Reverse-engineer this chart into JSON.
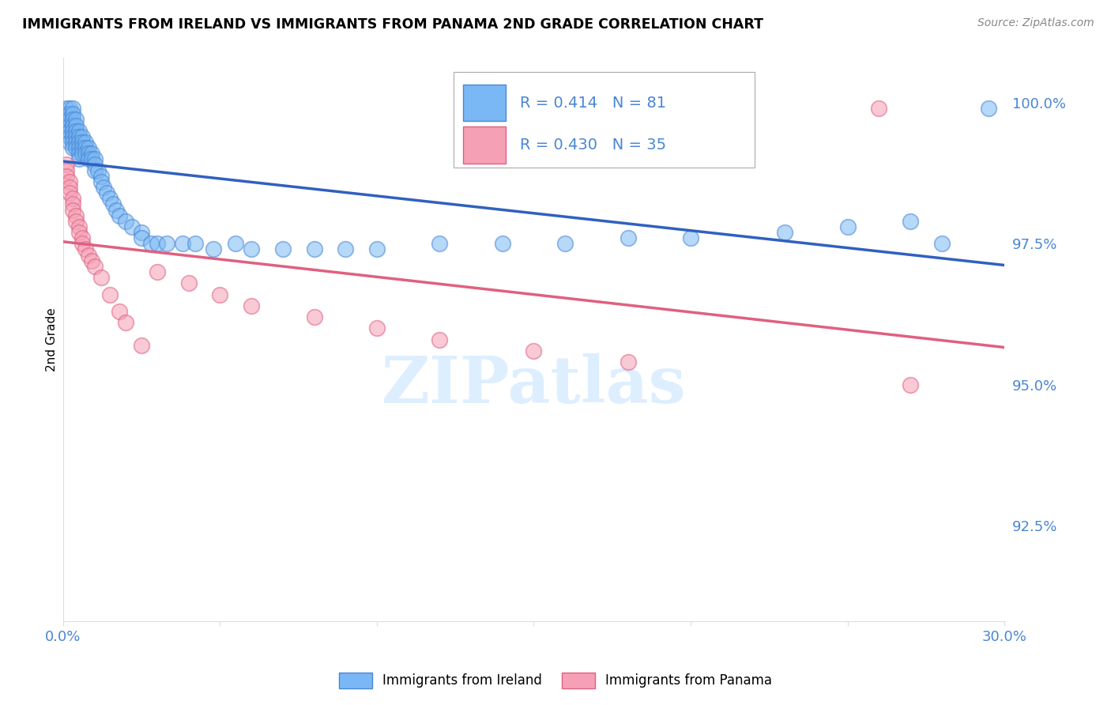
{
  "title": "IMMIGRANTS FROM IRELAND VS IMMIGRANTS FROM PANAMA 2ND GRADE CORRELATION CHART",
  "source": "Source: ZipAtlas.com",
  "ylabel": "2nd Grade",
  "ylabel_right_values": [
    1.0,
    0.975,
    0.95,
    0.925
  ],
  "xmin": 0.0,
  "xmax": 0.3,
  "ymin": 0.908,
  "ymax": 1.008,
  "legend_R_ireland": "0.414",
  "legend_N_ireland": "81",
  "legend_R_panama": "0.430",
  "legend_N_panama": "35",
  "ireland_color": "#7ab8f5",
  "panama_color": "#f5a0b5",
  "ireland_edge_color": "#4a86d4",
  "panama_edge_color": "#e06080",
  "ireland_line_color": "#3060c0",
  "panama_line_color": "#e06080",
  "watermark_color": "#ddeeff",
  "grid_color": "#dddddd",
  "axis_label_color": "#4a86d4",
  "ireland_x": [
    0.001,
    0.001,
    0.001,
    0.001,
    0.002,
    0.002,
    0.002,
    0.002,
    0.002,
    0.002,
    0.002,
    0.003,
    0.003,
    0.003,
    0.003,
    0.003,
    0.003,
    0.003,
    0.003,
    0.004,
    0.004,
    0.004,
    0.004,
    0.004,
    0.004,
    0.005,
    0.005,
    0.005,
    0.005,
    0.005,
    0.005,
    0.006,
    0.006,
    0.006,
    0.006,
    0.007,
    0.007,
    0.007,
    0.008,
    0.008,
    0.008,
    0.009,
    0.009,
    0.01,
    0.01,
    0.01,
    0.011,
    0.012,
    0.012,
    0.013,
    0.014,
    0.015,
    0.016,
    0.017,
    0.018,
    0.02,
    0.022,
    0.025,
    0.025,
    0.028,
    0.03,
    0.033,
    0.038,
    0.042,
    0.048,
    0.055,
    0.06,
    0.07,
    0.08,
    0.09,
    0.1,
    0.12,
    0.14,
    0.16,
    0.18,
    0.2,
    0.23,
    0.25,
    0.27,
    0.28,
    0.295
  ],
  "ireland_y": [
    0.999,
    0.998,
    0.997,
    0.996,
    0.999,
    0.998,
    0.997,
    0.996,
    0.995,
    0.994,
    0.993,
    0.999,
    0.998,
    0.997,
    0.996,
    0.995,
    0.994,
    0.993,
    0.992,
    0.997,
    0.996,
    0.995,
    0.994,
    0.993,
    0.992,
    0.995,
    0.994,
    0.993,
    0.992,
    0.991,
    0.99,
    0.994,
    0.993,
    0.992,
    0.991,
    0.993,
    0.992,
    0.991,
    0.992,
    0.991,
    0.99,
    0.991,
    0.99,
    0.99,
    0.989,
    0.988,
    0.988,
    0.987,
    0.986,
    0.985,
    0.984,
    0.983,
    0.982,
    0.981,
    0.98,
    0.979,
    0.978,
    0.977,
    0.976,
    0.975,
    0.975,
    0.975,
    0.975,
    0.975,
    0.974,
    0.975,
    0.974,
    0.974,
    0.974,
    0.974,
    0.974,
    0.975,
    0.975,
    0.975,
    0.976,
    0.976,
    0.977,
    0.978,
    0.979,
    0.975,
    0.999
  ],
  "panama_x": [
    0.001,
    0.001,
    0.001,
    0.002,
    0.002,
    0.002,
    0.003,
    0.003,
    0.003,
    0.004,
    0.004,
    0.005,
    0.005,
    0.006,
    0.006,
    0.007,
    0.008,
    0.009,
    0.01,
    0.012,
    0.015,
    0.018,
    0.02,
    0.025,
    0.03,
    0.04,
    0.05,
    0.06,
    0.08,
    0.1,
    0.12,
    0.15,
    0.18,
    0.26,
    0.27
  ],
  "panama_y": [
    0.989,
    0.988,
    0.987,
    0.986,
    0.985,
    0.984,
    0.983,
    0.982,
    0.981,
    0.98,
    0.979,
    0.978,
    0.977,
    0.976,
    0.975,
    0.974,
    0.973,
    0.972,
    0.971,
    0.969,
    0.966,
    0.963,
    0.961,
    0.957,
    0.97,
    0.968,
    0.966,
    0.964,
    0.962,
    0.96,
    0.958,
    0.956,
    0.954,
    0.999,
    0.95
  ]
}
